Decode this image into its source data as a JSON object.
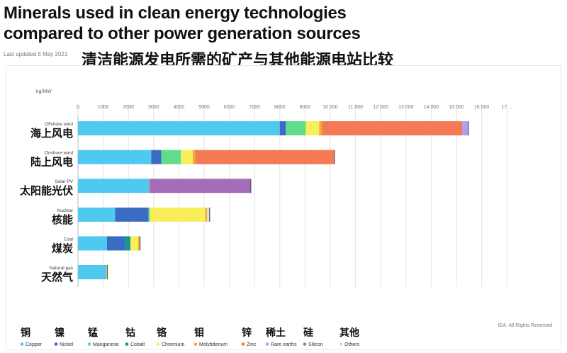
{
  "header": {
    "title_line1": "Minerals used in clean energy technologies",
    "title_line2": "compared to other power generation sources",
    "last_updated": "Last updated 5 May 2021",
    "title_cn": "清洁能源发电所需的矿产与其他能源电站比较"
  },
  "source": "IEA. All Rights Reserved",
  "colors": {
    "Copper": "#4fc9f0",
    "Nickel": "#3b6cc4",
    "Manganese": "#5fdc8c",
    "Cobalt": "#17988a",
    "Chromium": "#f8ee5a",
    "Molybdenum": "#f4a838",
    "Zinc": "#f47a55",
    "Rare earths": "#b69af0",
    "Silicon": "#a56cb8",
    "Others": "#dcdcdc"
  },
  "chart_data": {
    "type": "bar",
    "orientation": "horizontal",
    "stacked": true,
    "title": "Minerals used in clean energy technologies compared to other power generation sources",
    "xlabel": "kg/MW",
    "xlim": [
      0,
      17000
    ],
    "xticks": [
      "0",
      "1000",
      "2000",
      "3000",
      "4000",
      "5000",
      "6000",
      "7000",
      "8000",
      "9000",
      "10 000",
      "11 000",
      "12 000",
      "13 000",
      "14 000",
      "15 000",
      "16 000",
      "17 ..."
    ],
    "grid": true,
    "legend_position": "bottom",
    "categories": [
      {
        "en": "Offshore wind",
        "cn": "海上风电"
      },
      {
        "en": "Onshore wind",
        "cn": "陆上风电"
      },
      {
        "en": "Solar PV",
        "cn": "太阳能光伏"
      },
      {
        "en": "Nuclear",
        "cn": "核能"
      },
      {
        "en": "Coal",
        "cn": "煤炭"
      },
      {
        "en": "Natural gas",
        "cn": "天然气"
      }
    ],
    "series": [
      {
        "name": "Copper",
        "name_cn": "铜",
        "values": [
          8000,
          2900,
          2820,
          1470,
          1150,
          1100
        ]
      },
      {
        "name": "Nickel",
        "name_cn": "镍",
        "values": [
          240,
          400,
          0,
          1330,
          720,
          16
        ]
      },
      {
        "name": "Manganese",
        "name_cn": "锰",
        "values": [
          790,
          780,
          0,
          50,
          0,
          0
        ]
      },
      {
        "name": "Cobalt",
        "name_cn": "钴",
        "values": [
          0,
          0,
          0,
          0,
          210,
          0
        ]
      },
      {
        "name": "Chromium",
        "name_cn": "铬",
        "values": [
          530,
          470,
          0,
          2190,
          310,
          48
        ]
      },
      {
        "name": "Molybdenum",
        "name_cn": "钼",
        "values": [
          110,
          100,
          0,
          70,
          70,
          0
        ]
      },
      {
        "name": "Zinc",
        "name_cn": "锌",
        "values": [
          5560,
          5500,
          30,
          0,
          0,
          0
        ]
      },
      {
        "name": "Rare earths",
        "name_cn": "稀土",
        "values": [
          240,
          15,
          0,
          0,
          0,
          0
        ]
      },
      {
        "name": "Silicon",
        "name_cn": "硅",
        "values": [
          0,
          0,
          4000,
          0,
          0,
          0
        ]
      },
      {
        "name": "Others",
        "name_cn": "其他",
        "values": [
          0,
          0,
          0,
          110,
          0,
          0
        ]
      }
    ]
  }
}
